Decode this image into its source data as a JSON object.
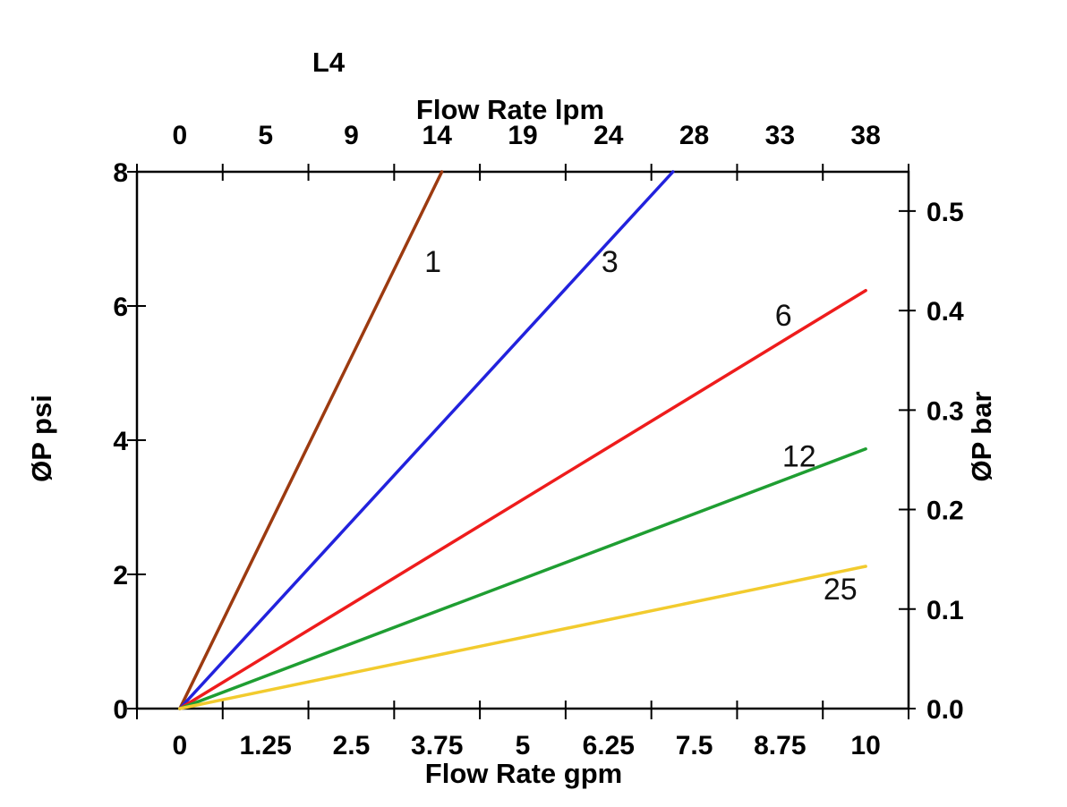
{
  "title": "L4",
  "axes": {
    "top": {
      "label": "Flow Rate lpm"
    },
    "bottom": {
      "label": "Flow Rate gpm"
    },
    "left": {
      "label": "ØP psi"
    },
    "right": {
      "label": "ØP bar"
    }
  },
  "chart_data": {
    "type": "line",
    "title": "L4",
    "xlabel_bottom": "Flow Rate gpm",
    "xlabel_top": "Flow Rate lpm",
    "ylabel_left": "ØP psi",
    "ylabel_right": "ØP bar",
    "x_axis_bottom": {
      "tick_labels": [
        "0",
        "1.25",
        "2.5",
        "3.75",
        "5",
        "6.25",
        "7.5",
        "8.75",
        "10"
      ],
      "range_gpm": [
        0,
        10
      ]
    },
    "x_axis_top": {
      "tick_labels": [
        "0",
        "5",
        "9",
        "14",
        "19",
        "24",
        "28",
        "33",
        "38"
      ],
      "range_lpm": [
        0,
        38
      ]
    },
    "y_axis_left": {
      "tick_labels": [
        "0",
        "2",
        "4",
        "6",
        "8"
      ],
      "tick_values_psi": [
        0,
        2,
        4,
        6,
        8
      ],
      "range_psi": [
        0,
        8
      ]
    },
    "y_axis_right": {
      "tick_labels": [
        "0.0",
        "0.1",
        "0.2",
        "0.3",
        "0.4",
        "0.5"
      ],
      "tick_values_bar": [
        0,
        0.1,
        0.2,
        0.3,
        0.4,
        0.5
      ]
    },
    "bar_to_psi": 14.83,
    "grid": false,
    "legend": "inline-labels-next-to-lines",
    "series": [
      {
        "name": "1",
        "color": "#9c3a10",
        "points_gpm_psi": [
          [
            0,
            0
          ],
          [
            3.82,
            8
          ]
        ],
        "label_pos_gpm_psi": [
          3.69,
          6.67
        ]
      },
      {
        "name": "3",
        "color": "#2222dd",
        "points_gpm_psi": [
          [
            0,
            0
          ],
          [
            7.19,
            8
          ]
        ],
        "label_pos_gpm_psi": [
          6.27,
          6.67
        ]
      },
      {
        "name": "6",
        "color": "#ee1c1c",
        "points_gpm_psi": [
          [
            0,
            0
          ],
          [
            10,
            6.23
          ]
        ],
        "label_pos_gpm_psi": [
          8.8,
          5.87
        ]
      },
      {
        "name": "12",
        "color": "#1f9e32",
        "points_gpm_psi": [
          [
            0,
            0
          ],
          [
            10,
            3.87
          ]
        ],
        "label_pos_gpm_psi": [
          9.03,
          3.77
        ]
      },
      {
        "name": "25",
        "color": "#f2cb2e",
        "points_gpm_psi": [
          [
            0,
            0
          ],
          [
            10,
            2.12
          ]
        ],
        "label_pos_gpm_psi": [
          9.63,
          1.79
        ]
      }
    ]
  }
}
